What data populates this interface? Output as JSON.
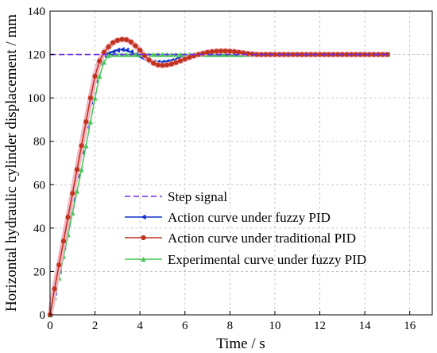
{
  "chart_data": {
    "type": "line",
    "xlabel": "Time / s",
    "ylabel": "Horizontal hydraulic cylinder displacement / mm",
    "xlim": [
      0,
      17
    ],
    "ylim": [
      0,
      140
    ],
    "xticks": [
      0,
      2,
      4,
      6,
      8,
      10,
      12,
      14,
      16
    ],
    "yticks": [
      0,
      20,
      40,
      60,
      80,
      100,
      120,
      140
    ],
    "grid": true,
    "legend_position": "bottom-right inside plot",
    "series": [
      {
        "name": "Step signal",
        "style": "dashed",
        "marker": "none",
        "color": "#6a2ee8",
        "x": [
          0,
          15
        ],
        "y": [
          120,
          120
        ]
      },
      {
        "name": "Action curve under fuzzy PID",
        "style": "solid",
        "marker": "left-triangle",
        "color": "#1133cc",
        "x": [
          0,
          0.2,
          0.4,
          0.6,
          0.8,
          1.0,
          1.2,
          1.4,
          1.6,
          1.8,
          2.0,
          2.2,
          2.4,
          2.6,
          2.8,
          3.0,
          3.2,
          3.4,
          3.6,
          3.8,
          4.0,
          4.2,
          4.4,
          4.6,
          4.8,
          5.0,
          5.2,
          5.4,
          5.6,
          5.8,
          6.0,
          6.2,
          6.4,
          6.6,
          6.8,
          7.0,
          7.2,
          7.4,
          7.6,
          7.8,
          8.0,
          8.2,
          8.4,
          8.6,
          8.8,
          9.0,
          9.2,
          9.4,
          9.6,
          9.8,
          10.0,
          10.2,
          10.4,
          10.6,
          10.8,
          11.0,
          11.2,
          11.4,
          11.6,
          11.8,
          12.0,
          12.2,
          12.4,
          12.6,
          12.8,
          13.0,
          13.2,
          13.4,
          13.6,
          13.8,
          14.0,
          14.2,
          14.4,
          14.6,
          14.8,
          15.0
        ],
        "y": [
          0,
          10,
          20,
          31,
          42,
          53,
          64,
          75,
          87,
          98,
          108,
          116,
          119.5,
          120.5,
          121.3,
          122,
          122.3,
          122,
          121.2,
          120,
          119,
          118,
          117,
          116.6,
          116.5,
          116.5,
          116.8,
          117.2,
          117.8,
          118.5,
          119,
          119.5,
          119.8,
          120,
          120,
          120,
          120,
          120,
          120,
          120,
          120,
          120,
          120,
          120,
          120,
          120,
          120,
          120,
          120,
          120,
          120,
          120,
          120,
          120,
          120,
          120,
          120,
          120,
          120,
          120,
          120,
          120,
          120,
          120,
          120,
          120,
          120,
          120,
          120,
          120,
          120,
          120,
          120,
          120,
          120,
          120
        ]
      },
      {
        "name": "Action curve under traditional PID",
        "style": "solid",
        "marker": "circle",
        "color": "#c0341f",
        "x": [
          0,
          0.2,
          0.4,
          0.6,
          0.8,
          1.0,
          1.2,
          1.4,
          1.6,
          1.8,
          2.0,
          2.2,
          2.4,
          2.6,
          2.8,
          3.0,
          3.2,
          3.4,
          3.6,
          3.8,
          4.0,
          4.2,
          4.4,
          4.6,
          4.8,
          5.0,
          5.2,
          5.4,
          5.6,
          5.8,
          6.0,
          6.2,
          6.4,
          6.6,
          6.8,
          7.0,
          7.2,
          7.4,
          7.6,
          7.8,
          8.0,
          8.2,
          8.4,
          8.6,
          8.8,
          9.0,
          9.2,
          9.4,
          9.6,
          9.8,
          10.0,
          10.2,
          10.4,
          10.6,
          10.8,
          11.0,
          11.2,
          11.4,
          11.6,
          11.8,
          12.0,
          12.2,
          12.4,
          12.6,
          12.8,
          13.0,
          13.2,
          13.4,
          13.6,
          13.8,
          14.0,
          14.2,
          14.4,
          14.6,
          14.8,
          15.0
        ],
        "y": [
          0,
          12,
          23,
          34,
          45,
          56,
          67,
          78,
          89,
          100,
          110,
          117,
          121,
          123.5,
          125.5,
          126.5,
          127,
          126.8,
          125.8,
          124,
          122,
          119.5,
          117.5,
          116,
          115.2,
          115,
          115.2,
          115.6,
          116.3,
          117.1,
          117.9,
          118.7,
          119.4,
          120,
          120.5,
          121,
          121.3,
          121.5,
          121.6,
          121.6,
          121.5,
          121.3,
          121,
          120.7,
          120.4,
          120.2,
          120,
          120,
          120,
          120,
          120,
          120,
          120,
          120,
          120,
          120,
          120,
          120,
          120,
          120,
          120,
          120,
          120,
          120,
          120,
          120,
          120,
          120,
          120,
          120,
          120,
          120,
          120,
          120,
          120,
          120
        ]
      },
      {
        "name": "Experimental curve under fuzzy PID",
        "style": "solid",
        "marker": "up-triangle",
        "color": "#48c65a",
        "x": [
          0,
          0.2,
          0.4,
          0.6,
          0.8,
          1.0,
          1.2,
          1.4,
          1.6,
          1.8,
          2.0,
          2.2,
          2.4,
          2.6,
          2.8,
          3.0,
          3.2,
          3.4,
          3.6,
          3.8,
          4.0,
          4.2,
          4.4,
          4.6,
          4.8,
          5.0,
          5.2,
          5.4,
          5.6,
          5.8,
          6.0,
          6.2,
          6.4,
          6.6,
          6.8,
          7.0,
          7.2,
          7.4,
          7.6,
          7.8,
          8.0,
          8.2,
          8.4,
          8.6,
          8.8,
          9.0,
          9.2,
          9.4,
          9.6,
          9.8,
          10.0,
          10.2,
          10.4,
          10.6,
          10.8,
          11.0,
          11.2,
          11.4,
          11.6,
          11.8,
          12.0,
          12.2,
          12.4,
          12.6,
          12.8,
          13.0,
          13.2,
          13.4,
          13.6,
          13.8,
          14.0,
          14.2,
          14.4,
          14.6,
          14.8,
          15.0
        ],
        "y": [
          0,
          8,
          17,
          27,
          37,
          47,
          57,
          67,
          78,
          89,
          100,
          110,
          116.5,
          119.5,
          120,
          120,
          120,
          120,
          120,
          120,
          120,
          120,
          120,
          120,
          120,
          120,
          120,
          120,
          120,
          120,
          120,
          120,
          120,
          120,
          120,
          120,
          120,
          120,
          120,
          120,
          120,
          120,
          120,
          120,
          120,
          120,
          120,
          120,
          120,
          120,
          120,
          120,
          120,
          120,
          120,
          120,
          120,
          120,
          120,
          120,
          120,
          120,
          120,
          120,
          120,
          120,
          120,
          120,
          120,
          120,
          120,
          120,
          120,
          120,
          120,
          120
        ]
      }
    ]
  }
}
